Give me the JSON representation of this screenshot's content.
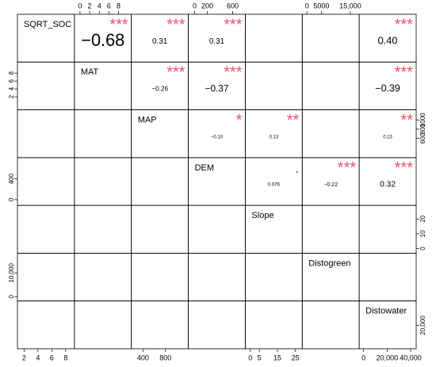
{
  "chart_data": {
    "type": "correlation-matrix",
    "variables": [
      {
        "name": "SQRT_SOC",
        "lim": [
          1.5,
          8.8
        ],
        "bottom_ticks": [
          2,
          4,
          6,
          8
        ]
      },
      {
        "name": "MAT",
        "lim": [
          -0.5,
          10
        ],
        "top_ticks": [
          0,
          2,
          4,
          6,
          8
        ],
        "left_ticks": [
          2,
          4,
          6,
          8
        ]
      },
      {
        "name": "MAP",
        "lim": [
          250,
          1150
        ],
        "bottom_ticks": [
          400,
          800
        ],
        "right_ticks": [
          600,
          800,
          1000
        ]
      },
      {
        "name": "DEM",
        "lim": [
          -50,
          750
        ],
        "top_ticks": [
          0,
          200,
          600
        ],
        "left_ticks": [
          0,
          400
        ]
      },
      {
        "name": "Slope",
        "lim": [
          -1,
          27
        ],
        "bottom_ticks": [
          0,
          5,
          15,
          25
        ],
        "right_ticks": [
          0,
          10,
          20
        ]
      },
      {
        "name": "Distogreen",
        "lim": [
          -500,
          17000
        ],
        "top_ticks": [
          0,
          5000,
          {
            "value": 15000,
            "label": "15,000"
          }
        ],
        "left_ticks": [
          0,
          {
            "value": 10000,
            "label": "10,000"
          }
        ]
      },
      {
        "name": "Distowater",
        "lim": [
          -1000,
          42000
        ],
        "bottom_ticks": [
          0,
          {
            "value": 20000,
            "label": "20,000"
          },
          {
            "value": 40000,
            "label": "40,000"
          }
        ],
        "right_ticks": [
          {
            "value": 20000,
            "label": "20,000"
          }
        ]
      }
    ],
    "correlations": [
      {
        "row": 0,
        "col": 1,
        "value": -0.68,
        "label": "−0.68",
        "stars": "***"
      },
      {
        "row": 0,
        "col": 2,
        "value": 0.31,
        "label": "0.31",
        "stars": "***"
      },
      {
        "row": 0,
        "col": 3,
        "value": 0.31,
        "label": "0.31",
        "stars": "***"
      },
      {
        "row": 0,
        "col": 6,
        "value": 0.4,
        "label": "0.40",
        "stars": "***"
      },
      {
        "row": 1,
        "col": 2,
        "value": -0.26,
        "label": "−0.26",
        "stars": "***"
      },
      {
        "row": 1,
        "col": 3,
        "value": -0.37,
        "label": "−0.37",
        "stars": "***"
      },
      {
        "row": 1,
        "col": 6,
        "value": -0.39,
        "label": "−0.39",
        "stars": "***"
      },
      {
        "row": 2,
        "col": 3,
        "value": -0.1,
        "label": "−0.10",
        "stars": "*"
      },
      {
        "row": 2,
        "col": 4,
        "value": 0.13,
        "label": "0.13",
        "stars": "**"
      },
      {
        "row": 2,
        "col": 6,
        "value": 0.13,
        "label": "0.13",
        "stars": "**"
      },
      {
        "row": 3,
        "col": 4,
        "value": 0.076,
        "label": "0.076",
        "stars": "."
      },
      {
        "row": 3,
        "col": 5,
        "value": -0.22,
        "label": "−0.22",
        "stars": "***"
      },
      {
        "row": 3,
        "col": 6,
        "value": 0.32,
        "label": "0.32",
        "stars": "***"
      }
    ],
    "star_color": "#ec5272"
  }
}
